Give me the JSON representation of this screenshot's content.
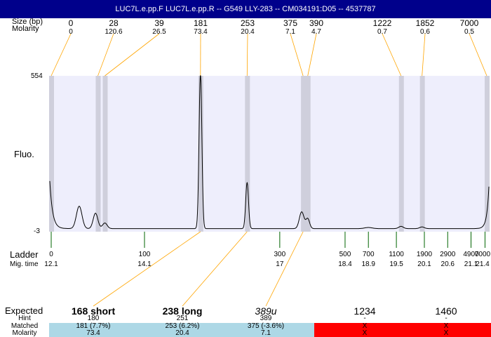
{
  "title": "LUC7L.e.pp.F  LUC7L.e.pp.R -- G549 LLY-283 -- CM034191:D05 -- 4537787",
  "labels": {
    "size": "Size (bp)",
    "molarity": "Molarity",
    "fluo": "Fluo.",
    "ladder": "Ladder",
    "migtime": "Mig. time",
    "expected": "Expected",
    "hint": "Hint",
    "matched": "Matched",
    "molarity2": "Molarity"
  },
  "chart_data": {
    "type": "line",
    "ylabel": "Fluo.",
    "ylim": [
      -3,
      554
    ],
    "yticks": [
      "554",
      "-3"
    ],
    "peaks": [
      {
        "size": "0",
        "molarity": "0",
        "time": 12.1
      },
      {
        "size": "28",
        "molarity": "120.6",
        "time": 13.1
      },
      {
        "size": "39",
        "molarity": "26.5",
        "time": 13.25
      },
      {
        "size": "181",
        "molarity": "73.4",
        "time": 15.3
      },
      {
        "size": "253",
        "molarity": "20.4",
        "time": 16.3
      },
      {
        "size": "375",
        "molarity": "7.1",
        "time": 17.5
      },
      {
        "size": "390",
        "molarity": "4.7",
        "time": 17.6
      },
      {
        "size": "1222",
        "molarity": "0.7",
        "time": 19.6
      },
      {
        "size": "1852",
        "molarity": "0.6",
        "time": 20.05
      },
      {
        "size": "7000",
        "molarity": "0.5",
        "time": 21.5
      }
    ],
    "ladder": [
      {
        "size": "0",
        "time": "12.1"
      },
      {
        "size": "100",
        "time": "14.1"
      },
      {
        "size": "300",
        "time": "17"
      },
      {
        "size": "500",
        "time": "18.4"
      },
      {
        "size": "700",
        "time": "18.9"
      },
      {
        "size": "1100",
        "time": "19.5"
      },
      {
        "size": "1900",
        "time": "20.1"
      },
      {
        "size": "2900",
        "time": "20.6"
      },
      {
        "size": "4900",
        "time": "21.1"
      },
      {
        "size": "7000",
        "time": "21.4"
      }
    ]
  },
  "expected": [
    {
      "name": "168 short",
      "hint": "180",
      "matched": "181 (7.7%)",
      "molarity": "73.4",
      "status": "matched",
      "style": "bold"
    },
    {
      "name": "238 long",
      "hint": "251",
      "matched": "253 (6.2%)",
      "molarity": "20.4",
      "status": "matched",
      "style": "bold"
    },
    {
      "name": "389u",
      "hint": "389",
      "matched": "375 (-3.6%)",
      "molarity": "7.1",
      "status": "matched",
      "style": "italic"
    },
    {
      "name": "1234",
      "hint": "-",
      "matched": "X",
      "molarity": "X",
      "status": "missing",
      "style": "normal"
    },
    {
      "name": "1460",
      "hint": "-",
      "matched": "X",
      "molarity": "X",
      "status": "missing",
      "style": "normal"
    }
  ],
  "colors": {
    "title_bg": "#00008b",
    "plot_bg": "#eeeefc",
    "band": "#cfcfdc",
    "connector": "#ffa500",
    "ladder_tick": "#006400",
    "matched": "#add8e6",
    "missing": "#ff0000"
  }
}
